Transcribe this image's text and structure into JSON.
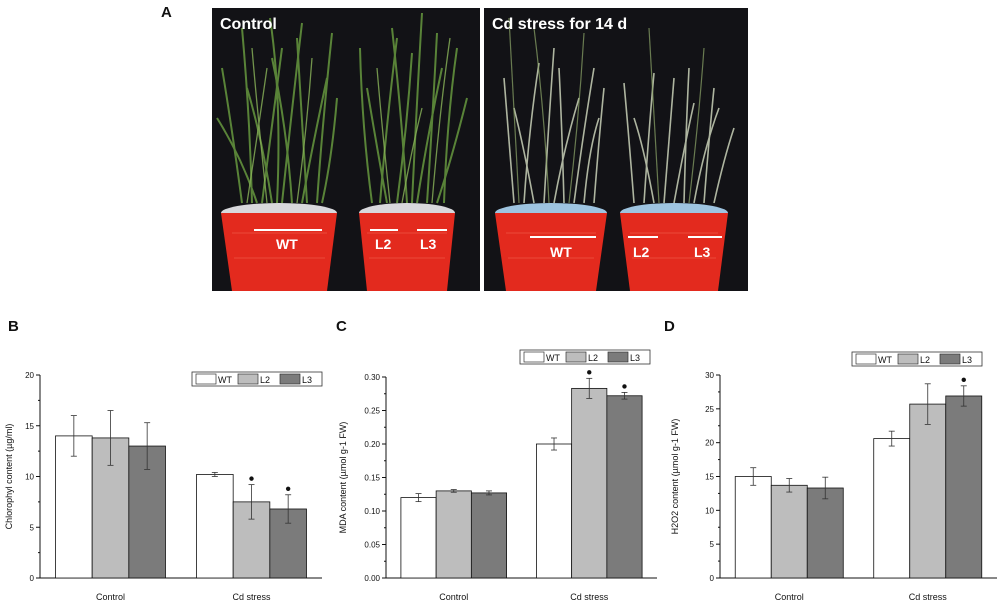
{
  "panel_labels": {
    "a": "A",
    "b": "B",
    "c": "C",
    "d": "D"
  },
  "photos": {
    "left_title": "Control",
    "right_title": "Cd stress  for 14 d",
    "left_buckets": [
      "WT",
      "L2",
      "L3"
    ],
    "right_buckets": [
      "WT",
      "L2",
      "L3"
    ]
  },
  "colors": {
    "WT": "#ffffff",
    "L2": "#bdbdbd",
    "L3": "#7b7b7b",
    "bucket_red": "#e32a1e",
    "photo_bg": "#121216"
  },
  "chart_data": [
    {
      "type": "bar",
      "panel": "B",
      "categories": [
        "Control",
        "Cd stress"
      ],
      "series": [
        {
          "name": "WT",
          "values": [
            14.0,
            10.2
          ],
          "errors": [
            2.0,
            0.2
          ],
          "sig": [
            false,
            false
          ]
        },
        {
          "name": "L2",
          "values": [
            13.8,
            7.5
          ],
          "errors": [
            2.7,
            1.7
          ],
          "sig": [
            false,
            true
          ]
        },
        {
          "name": "L3",
          "values": [
            13.0,
            6.8
          ],
          "errors": [
            2.3,
            1.4
          ],
          "sig": [
            false,
            true
          ]
        }
      ],
      "ylabel": "Chlorophyl content (µg/ml)",
      "ylim": [
        0,
        20
      ],
      "yticks": [
        "0",
        "5",
        "10",
        "15",
        "20"
      ],
      "legend": "top-right",
      "grid": false
    },
    {
      "type": "bar",
      "panel": "C",
      "categories": [
        "Control",
        "Cd stress"
      ],
      "series": [
        {
          "name": "WT",
          "values": [
            0.12,
            0.2
          ],
          "errors": [
            0.006,
            0.009
          ],
          "sig": [
            false,
            false
          ]
        },
        {
          "name": "L2",
          "values": [
            0.13,
            0.283
          ],
          "errors": [
            0.002,
            0.015
          ],
          "sig": [
            false,
            true
          ]
        },
        {
          "name": "L3",
          "values": [
            0.127,
            0.272
          ],
          "errors": [
            0.003,
            0.005
          ],
          "sig": [
            false,
            true
          ]
        }
      ],
      "ylabel": "MDA content (µmol g-1 FW)",
      "ylim": [
        0,
        0.3
      ],
      "yticks": [
        "0.00",
        "0.05",
        "0.10",
        "0.15",
        "0.20",
        "0.25",
        "0.30"
      ],
      "legend": "top-right",
      "grid": false
    },
    {
      "type": "bar",
      "panel": "D",
      "categories": [
        "Control",
        "Cd stress"
      ],
      "series": [
        {
          "name": "WT",
          "values": [
            15.0,
            20.6
          ],
          "errors": [
            1.3,
            1.1
          ],
          "sig": [
            false,
            false
          ]
        },
        {
          "name": "L2",
          "values": [
            13.7,
            25.7
          ],
          "errors": [
            1.0,
            3.0
          ],
          "sig": [
            false,
            false
          ]
        },
        {
          "name": "L3",
          "values": [
            13.3,
            26.9
          ],
          "errors": [
            1.6,
            1.5
          ],
          "sig": [
            false,
            true
          ]
        }
      ],
      "ylabel": "H2O2 content (µmol g-1 FW)",
      "ylim": [
        0,
        30
      ],
      "yticks": [
        "0",
        "5",
        "10",
        "15",
        "20",
        "25",
        "30"
      ],
      "legend": "top-right",
      "grid": false
    }
  ]
}
